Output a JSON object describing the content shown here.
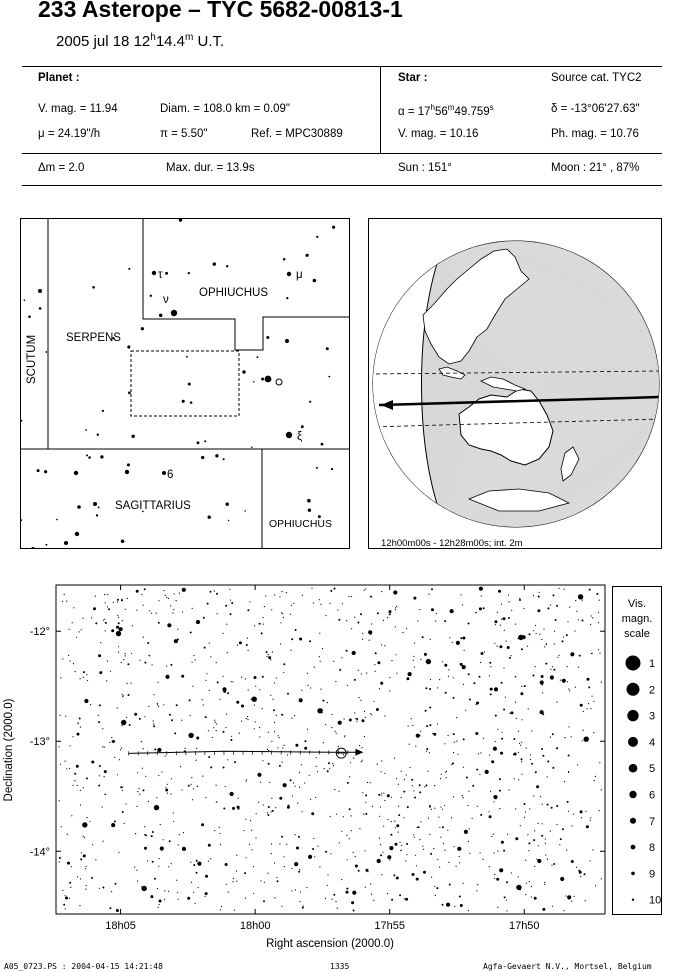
{
  "header": {
    "title": "233 Asterope  –  TYC 5682-00813-1",
    "date": "2005 jul 18  12",
    "time_hour_sup": "h",
    "time_min": "14.4",
    "time_min_sup": "m",
    "time_suffix": " U.T."
  },
  "planet": {
    "heading": "Planet :",
    "vmag": "V. mag. = 11.94",
    "diam": "Diam. = 108.0 km = 0.09\"",
    "mu": "μ =  24.19\"/h",
    "pi": "π =  5.50\"",
    "ref": "Ref. = MPC30889",
    "dm": "Δm = 2.0",
    "maxdur": "Max. dur. = 13.9s"
  },
  "star": {
    "heading": "Star :",
    "source": "Source cat.  TYC2",
    "alpha_prefix": "α = 17",
    "alpha_h": "h",
    "alpha_m_val": "56",
    "alpha_m": "m",
    "alpha_s_val": "49.759",
    "alpha_s": "s",
    "delta": "δ = -13°06'27.63\"",
    "vmag": "V. mag. = 10.16",
    "phmag": "Ph. mag. = 10.76",
    "sun": "Sun : 151°",
    "moon": "Moon :  21° , 87%"
  },
  "constellation_map": {
    "labels": {
      "ophiuchus_top": "OPHIUCHUS",
      "serpens": "SERPENS",
      "scutum": "SCUTUM",
      "sagittarius": "SAGITTARIUS",
      "ophiuchus_bottom": "OPHIUCHUS"
    },
    "star_labels": {
      "tau": "τ",
      "mu": "μ",
      "nu": "ν",
      "xi": "ξ",
      "six": "6"
    }
  },
  "globe": {
    "caption": "12h00m00s - 12h28m00s; int.  2m"
  },
  "chart_data": {
    "type": "scatter",
    "title": "",
    "xlabel": "Right ascension (2000.0)",
    "ylabel": "Declination (2000.0)",
    "x_tick_labels": [
      "18h05",
      "18h00",
      "17h55",
      "17h50"
    ],
    "y_tick_labels": [
      "-12°",
      "-13°",
      "-14°"
    ],
    "xlim": [
      "18h07.4",
      "17h47.0"
    ],
    "ylim": [
      -14.57,
      -11.58
    ],
    "path": {
      "name": "",
      "points": [
        {
          "ra": "18h04.7",
          "dec": -13.11
        },
        {
          "ra": "18h01.1",
          "dec": -13.09
        },
        {
          "ra": "17h57.2",
          "dec": -13.1
        },
        {
          "ra": "17h56.2",
          "dec": -13.1
        }
      ],
      "target": {
        "ra": "17h56.8",
        "dec": -13.108
      }
    }
  },
  "magnitude_scale": {
    "title_lines": [
      "Vis.",
      "magn.",
      "scale"
    ],
    "values": [
      "1",
      "2",
      "3",
      "4",
      "5",
      "6",
      "7",
      "8",
      "9",
      "10"
    ]
  },
  "footer": {
    "left": "A05_0723.PS : 2004-04-15 14:21:48",
    "center": "1335",
    "right": "Agfa-Gevaert N.V., Mortsel, Belgium"
  }
}
